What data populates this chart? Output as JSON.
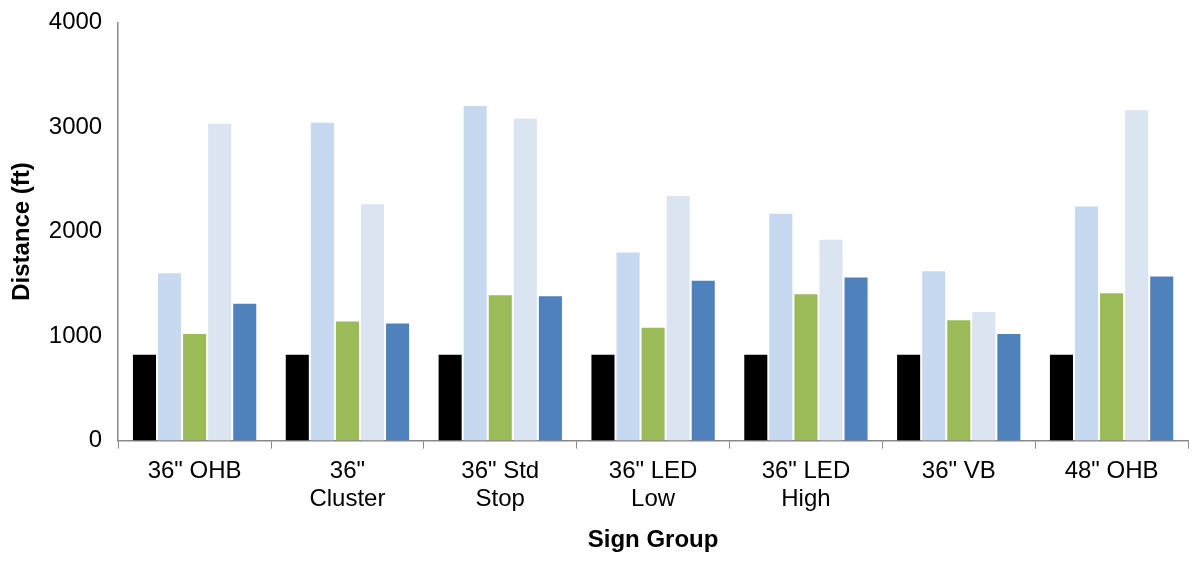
{
  "chart_data": {
    "type": "bar",
    "xlabel": "Sign Group",
    "ylabel": "Distance (ft)",
    "categories": [
      "36\" OHB",
      "36\" Cluster",
      "36\" Std Stop",
      "36\" LED Low",
      "36\" LED High",
      "36\" VB",
      "48\" OHB"
    ],
    "series": [
      {
        "color": "#000000",
        "values": [
          820,
          820,
          820,
          820,
          820,
          820,
          820
        ]
      },
      {
        "color": "#c6d9f1",
        "values": [
          1600,
          3040,
          3200,
          1800,
          2170,
          1620,
          2240
        ]
      },
      {
        "color": "#9bbb59",
        "values": [
          1020,
          1140,
          1390,
          1080,
          1400,
          1150,
          1410
        ]
      },
      {
        "color": "#dbe5f1",
        "values": [
          3030,
          2260,
          3080,
          2340,
          1920,
          1230,
          3160
        ]
      },
      {
        "color": "#4f81bd",
        "values": [
          1310,
          1120,
          1380,
          1530,
          1560,
          1020,
          1570
        ]
      }
    ],
    "ylim": [
      0,
      4000
    ],
    "yticks": [
      0,
      1000,
      2000,
      3000,
      4000
    ],
    "grid": false,
    "legend": false
  }
}
